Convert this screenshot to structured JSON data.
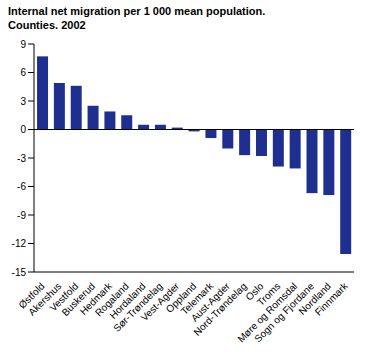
{
  "chart_data": {
    "type": "bar",
    "title": "Internal net migration per 1 000 mean population.\nCounties. 2002",
    "categories": [
      "Østfold",
      "Akershus",
      "Vestfold",
      "Buskerud",
      "Hedmark",
      "Rogaland",
      "Hordaland",
      "Sør-Trøndelag",
      "Vest-Agder",
      "Oppland",
      "Telemark",
      "Aust-Agder",
      "Nord-Trøndelag",
      "Oslo",
      "Troms",
      "Møre og Romsdal",
      "Sogn og Fjordane",
      "Nordland",
      "Finnmark"
    ],
    "values": [
      7.7,
      4.9,
      4.6,
      2.5,
      1.9,
      1.5,
      0.5,
      0.5,
      0.2,
      -0.2,
      -0.9,
      -2.0,
      -2.7,
      -2.8,
      -3.9,
      -4.1,
      -6.7,
      -6.9,
      -13.1
    ],
    "color": "#1f2f8f",
    "ylim": [
      -15,
      9
    ],
    "yticks": [
      -15,
      -12,
      -9,
      -6,
      -3,
      0,
      3,
      6,
      9
    ],
    "grid": false
  }
}
